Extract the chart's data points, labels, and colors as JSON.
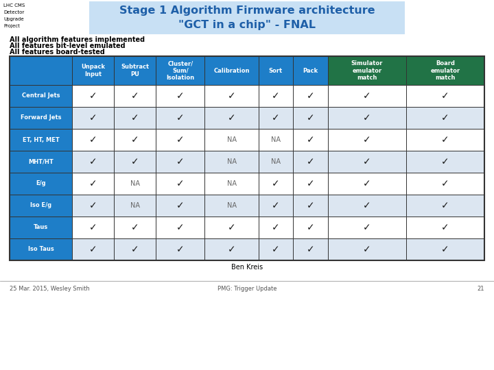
{
  "title_line1": "Stage 1 Algorithm Firmware architecture",
  "title_line2": "\"GCT in a chip\" - FNAL",
  "subtitle_lines": [
    "All algorithm features implemented",
    "All features bit-level emulated",
    "All features board-tested"
  ],
  "col_headers": [
    "",
    "Unpack\nInput",
    "Subtract\nPU",
    "Cluster/\nSum/\nIsolation",
    "Calibration",
    "Sort",
    "Pack",
    "Simulator\nemulator\nmatch",
    "Board\nemulator\nmatch"
  ],
  "row_labels": [
    "Central Jets",
    "Forward Jets",
    "ET, HT, MET",
    "MHT/HT",
    "E/g",
    "Iso E/g",
    "Taus",
    "Iso Taus"
  ],
  "table_data": [
    [
      "✓",
      "✓",
      "✓",
      "✓",
      "✓",
      "✓",
      "✓",
      "✓"
    ],
    [
      "✓",
      "✓",
      "✓",
      "✓",
      "✓",
      "✓",
      "✓",
      "✓"
    ],
    [
      "✓",
      "✓",
      "✓",
      "NA",
      "NA",
      "✓",
      "✓",
      "✓"
    ],
    [
      "✓",
      "✓",
      "✓",
      "NA",
      "NA",
      "✓",
      "✓",
      "✓"
    ],
    [
      "✓",
      "NA",
      "✓",
      "NA",
      "✓",
      "✓",
      "✓",
      "✓"
    ],
    [
      "✓",
      "NA",
      "✓",
      "NA",
      "✓",
      "✓",
      "✓",
      "✓"
    ],
    [
      "✓",
      "✓",
      "✓",
      "✓",
      "✓",
      "✓",
      "✓",
      "✓"
    ],
    [
      "✓",
      "✓",
      "✓",
      "✓",
      "✓",
      "✓",
      "✓",
      "✓"
    ]
  ],
  "header_bg": "#1E7EC8",
  "header_text": "#FFFFFF",
  "row_label_bg": "#1E7EC8",
  "row_label_text": "#FFFFFF",
  "cell_bg_light": "#DCE6F1",
  "cell_bg_white": "#FFFFFF",
  "green_header_bg": "#217346",
  "green_header_text": "#FFFFFF",
  "check_color": "#1a1a1a",
  "na_color": "#666666",
  "border_color": "#333333",
  "footer_text": "Ben Kreis",
  "bottom_left": "25 Mar. 2015, Wesley Smith",
  "bottom_center": "PMG: Trigger Update",
  "bottom_right": "21",
  "bg_color": "#FFFFFF",
  "title_color": "#1E5FA8",
  "title_bg": "#C8E0F4",
  "lhc_text_color": "#000000"
}
